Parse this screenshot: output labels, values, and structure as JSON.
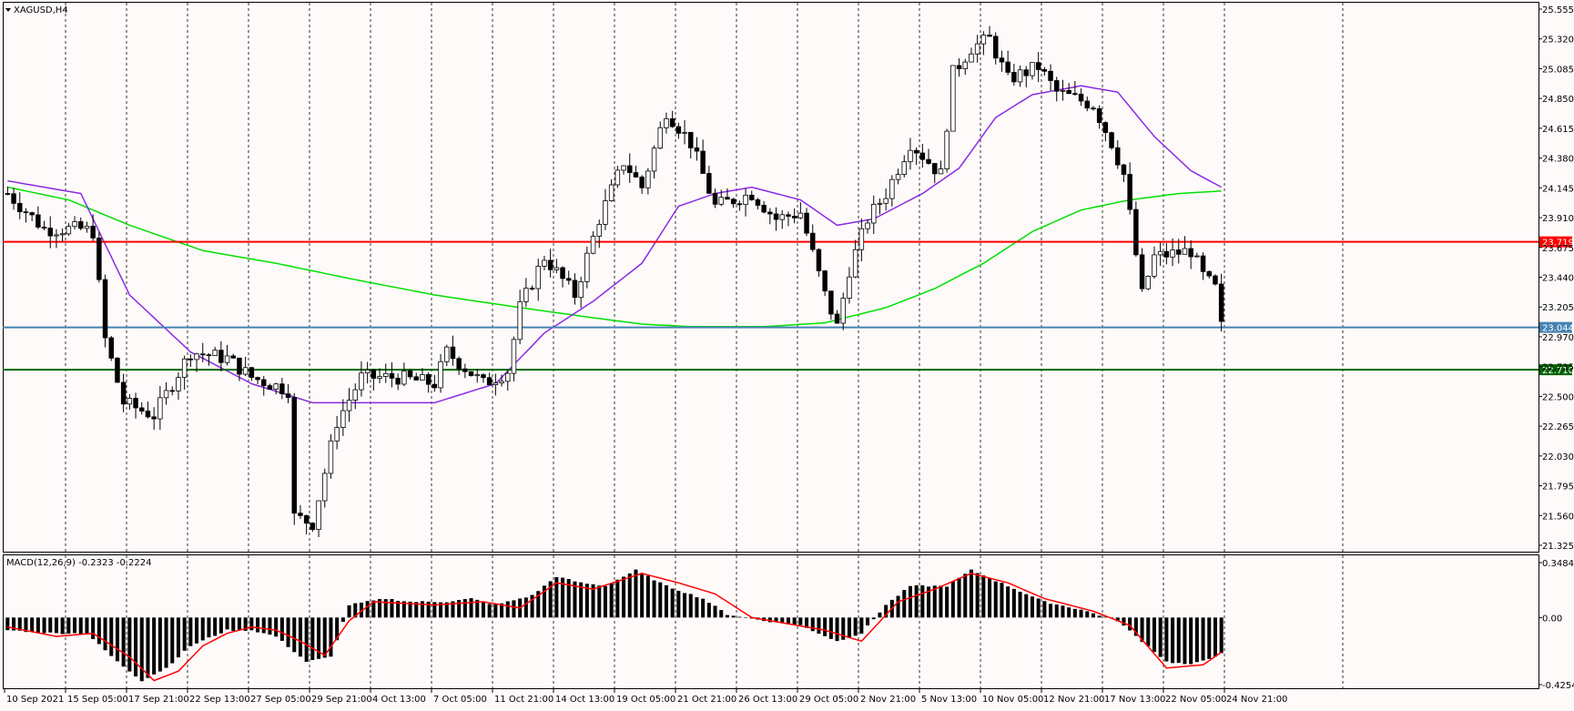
{
  "window": {
    "symbol_label": "XAGUSD,H4"
  },
  "colors": {
    "background": "#fffafa",
    "candle": "#000000",
    "grid": "#000000",
    "ma_fast": "#8a2be2",
    "ma_slow": "#00e000",
    "macd_signal": "#ff0000",
    "resistance": "#ff0000",
    "support_blue": "#4682b4",
    "support_green": "#006400"
  },
  "chart_data": [
    {
      "type": "candlestick",
      "title": "XAGUSD,H4",
      "ylim": [
        21.325,
        25.555
      ],
      "y_ticks": [
        "25.555",
        "25.320",
        "25.085",
        "24.850",
        "24.615",
        "24.380",
        "24.145",
        "23.910",
        "23.675",
        "23.440",
        "23.205",
        "22.970",
        "22.735",
        "22.500",
        "22.265",
        "22.030",
        "21.795",
        "21.560",
        "21.325"
      ],
      "x_ticks": [
        "10 Sep 2021",
        "15 Sep 05:00",
        "17 Sep 21:00",
        "22 Sep 13:00",
        "27 Sep 05:00",
        "29 Sep 21:00",
        "4 Oct 13:00",
        "7 Oct 05:00",
        "11 Oct 21:00",
        "14 Oct 13:00",
        "19 Oct 05:00",
        "21 Oct 21:00",
        "26 Oct 13:00",
        "29 Oct 05:00",
        "2 Nov 21:00",
        "5 Nov 13:00",
        "10 Nov 05:00",
        "12 Nov 21:00",
        "17 Nov 13:00",
        "22 Nov 05:00",
        "24 Nov 21:00"
      ],
      "grid": true,
      "bars": 200,
      "close_path": [
        [
          0,
          24.1
        ],
        [
          6,
          23.82
        ],
        [
          12,
          23.82
        ],
        [
          14,
          23.8
        ],
        [
          16,
          22.95
        ],
        [
          19,
          22.45
        ],
        [
          24,
          22.35
        ],
        [
          30,
          22.85
        ],
        [
          36,
          22.8
        ],
        [
          40,
          22.65
        ],
        [
          46,
          22.55
        ],
        [
          47,
          21.55
        ],
        [
          50,
          21.5
        ],
        [
          54,
          22.3
        ],
        [
          58,
          22.65
        ],
        [
          64,
          22.65
        ],
        [
          70,
          22.6
        ],
        [
          72,
          22.85
        ],
        [
          78,
          22.6
        ],
        [
          82,
          22.7
        ],
        [
          84,
          23.2
        ],
        [
          88,
          23.6
        ],
        [
          93,
          23.3
        ],
        [
          97,
          23.9
        ],
        [
          101,
          24.35
        ],
        [
          104,
          24.15
        ],
        [
          108,
          24.75
        ],
        [
          112,
          24.5
        ],
        [
          116,
          24.0
        ],
        [
          122,
          24.1
        ],
        [
          126,
          23.9
        ],
        [
          130,
          23.95
        ],
        [
          134,
          23.3
        ],
        [
          136,
          23.05
        ],
        [
          138,
          23.5
        ],
        [
          141,
          23.9
        ],
        [
          144,
          24.1
        ],
        [
          148,
          24.5
        ],
        [
          153,
          24.25
        ],
        [
          155,
          25.05
        ],
        [
          158,
          25.25
        ],
        [
          161,
          25.32
        ],
        [
          164,
          25.0
        ],
        [
          169,
          25.1
        ],
        [
          172,
          24.9
        ],
        [
          178,
          24.8
        ],
        [
          181,
          24.5
        ],
        [
          183,
          24.25
        ],
        [
          186,
          23.3
        ],
        [
          188,
          23.6
        ],
        [
          194,
          23.65
        ],
        [
          196,
          23.45
        ],
        [
          198,
          23.35
        ],
        [
          199,
          23.05
        ]
      ],
      "ma_fast_path": [
        [
          0,
          24.2
        ],
        [
          12,
          24.1
        ],
        [
          20,
          23.3
        ],
        [
          30,
          22.85
        ],
        [
          40,
          22.6
        ],
        [
          50,
          22.45
        ],
        [
          60,
          22.45
        ],
        [
          70,
          22.45
        ],
        [
          80,
          22.6
        ],
        [
          88,
          23.0
        ],
        [
          96,
          23.25
        ],
        [
          104,
          23.55
        ],
        [
          110,
          24.0
        ],
        [
          116,
          24.1
        ],
        [
          122,
          24.15
        ],
        [
          130,
          24.05
        ],
        [
          136,
          23.85
        ],
        [
          142,
          23.9
        ],
        [
          150,
          24.1
        ],
        [
          156,
          24.3
        ],
        [
          162,
          24.7
        ],
        [
          168,
          24.88
        ],
        [
          176,
          24.95
        ],
        [
          182,
          24.9
        ],
        [
          188,
          24.55
        ],
        [
          194,
          24.28
        ],
        [
          199,
          24.15
        ]
      ],
      "ma_slow_path": [
        [
          0,
          24.15
        ],
        [
          10,
          24.05
        ],
        [
          20,
          23.85
        ],
        [
          32,
          23.65
        ],
        [
          44,
          23.55
        ],
        [
          56,
          23.43
        ],
        [
          70,
          23.3
        ],
        [
          84,
          23.2
        ],
        [
          96,
          23.12
        ],
        [
          104,
          23.07
        ],
        [
          112,
          23.05
        ],
        [
          124,
          23.05
        ],
        [
          134,
          23.08
        ],
        [
          144,
          23.2
        ],
        [
          152,
          23.35
        ],
        [
          160,
          23.55
        ],
        [
          168,
          23.8
        ],
        [
          176,
          23.97
        ],
        [
          184,
          24.05
        ],
        [
          192,
          24.1
        ],
        [
          199,
          24.12
        ]
      ],
      "horizontal_levels": [
        {
          "name": "resistance",
          "value": 23.719,
          "label": "23.719",
          "color": "#ff0000"
        },
        {
          "name": "support-blue",
          "value": 23.044,
          "label": "23.044",
          "color": "#4682b4"
        },
        {
          "name": "support-green",
          "value": 22.71,
          "label": "22.710",
          "color": "#006400"
        }
      ]
    },
    {
      "type": "macd",
      "label": "MACD(12,26,9) -0.2323 -0.2224",
      "ylim": [
        -0.4254,
        0.3484
      ],
      "y_ticks": [
        "0.3484",
        "0.00",
        "-0.4254"
      ],
      "histogram_path": [
        [
          0,
          -0.08
        ],
        [
          8,
          -0.1
        ],
        [
          13,
          -0.1
        ],
        [
          18,
          -0.28
        ],
        [
          22,
          -0.4
        ],
        [
          26,
          -0.32
        ],
        [
          30,
          -0.18
        ],
        [
          36,
          -0.08
        ],
        [
          40,
          -0.08
        ],
        [
          44,
          -0.12
        ],
        [
          49,
          -0.28
        ],
        [
          53,
          -0.25
        ],
        [
          56,
          0.08
        ],
        [
          62,
          0.12
        ],
        [
          66,
          0.1
        ],
        [
          72,
          0.1
        ],
        [
          76,
          0.12
        ],
        [
          80,
          0.08
        ],
        [
          86,
          0.14
        ],
        [
          90,
          0.26
        ],
        [
          94,
          0.22
        ],
        [
          98,
          0.2
        ],
        [
          103,
          0.3
        ],
        [
          108,
          0.2
        ],
        [
          114,
          0.12
        ],
        [
          118,
          0.02
        ],
        [
          124,
          -0.02
        ],
        [
          130,
          -0.05
        ],
        [
          136,
          -0.15
        ],
        [
          140,
          -0.1
        ],
        [
          144,
          0.08
        ],
        [
          148,
          0.2
        ],
        [
          154,
          0.2
        ],
        [
          158,
          0.3
        ],
        [
          164,
          0.2
        ],
        [
          170,
          0.1
        ],
        [
          176,
          0.05
        ],
        [
          182,
          -0.02
        ],
        [
          186,
          -0.15
        ],
        [
          190,
          -0.28
        ],
        [
          194,
          -0.3
        ],
        [
          199,
          -0.23
        ]
      ],
      "signal_path": [
        [
          0,
          -0.06
        ],
        [
          8,
          -0.12
        ],
        [
          14,
          -0.1
        ],
        [
          20,
          -0.25
        ],
        [
          24,
          -0.4
        ],
        [
          28,
          -0.34
        ],
        [
          32,
          -0.18
        ],
        [
          36,
          -0.1
        ],
        [
          40,
          -0.06
        ],
        [
          44,
          -0.08
        ],
        [
          48,
          -0.15
        ],
        [
          52,
          -0.24
        ],
        [
          56,
          -0.02
        ],
        [
          60,
          0.1
        ],
        [
          70,
          0.08
        ],
        [
          78,
          0.1
        ],
        [
          84,
          0.06
        ],
        [
          90,
          0.22
        ],
        [
          96,
          0.18
        ],
        [
          104,
          0.28
        ],
        [
          110,
          0.22
        ],
        [
          116,
          0.15
        ],
        [
          122,
          0.0
        ],
        [
          128,
          -0.04
        ],
        [
          134,
          -0.08
        ],
        [
          140,
          -0.15
        ],
        [
          146,
          0.1
        ],
        [
          152,
          0.18
        ],
        [
          158,
          0.28
        ],
        [
          164,
          0.22
        ],
        [
          170,
          0.12
        ],
        [
          178,
          0.04
        ],
        [
          184,
          -0.05
        ],
        [
          190,
          -0.32
        ],
        [
          196,
          -0.3
        ],
        [
          199,
          -0.22
        ]
      ]
    }
  ]
}
